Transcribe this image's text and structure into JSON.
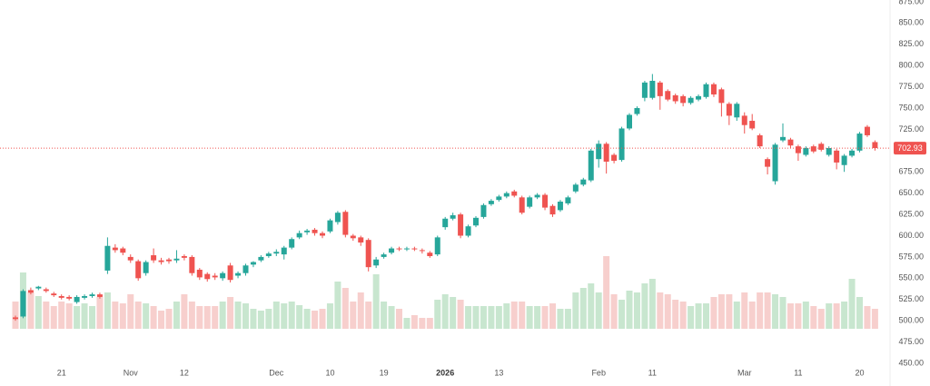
{
  "chart_data": {
    "type": "candlestick",
    "categories": [
      null,
      null,
      null,
      null,
      null,
      null,
      "21",
      null,
      null,
      null,
      null,
      null,
      null,
      null,
      null,
      "Nov",
      null,
      null,
      null,
      null,
      null,
      null,
      "12",
      null,
      null,
      null,
      null,
      null,
      null,
      null,
      null,
      null,
      null,
      null,
      "Dec",
      null,
      null,
      null,
      null,
      null,
      null,
      "10",
      null,
      null,
      null,
      null,
      null,
      null,
      "19",
      null,
      null,
      null,
      null,
      null,
      null,
      null,
      "2026",
      null,
      null,
      null,
      null,
      null,
      null,
      "13",
      null,
      null,
      null,
      null,
      null,
      null,
      null,
      null,
      null,
      null,
      null,
      null,
      "Feb",
      null,
      null,
      null,
      null,
      null,
      null,
      "11",
      null,
      null,
      null,
      null,
      null,
      null,
      null,
      null,
      null,
      null,
      null,
      "Mar",
      null,
      null,
      null,
      null,
      null,
      null,
      "11",
      null,
      null,
      null,
      null,
      null,
      null,
      null,
      "20",
      null,
      null
    ],
    "open": [
      504,
      505,
      536,
      538,
      537,
      532,
      529,
      528,
      522,
      527,
      529,
      531,
      559,
      586,
      585,
      575,
      570,
      556,
      577,
      571,
      572,
      571,
      576,
      575,
      560,
      555,
      553,
      550,
      565,
      553,
      556,
      566,
      571,
      576,
      579,
      578,
      586,
      598,
      604,
      607,
      603,
      605,
      616,
      628,
      600,
      598,
      595,
      565,
      575,
      580,
      585,
      584,
      585,
      583,
      580,
      578,
      610,
      620,
      625,
      600,
      612,
      622,
      637,
      642,
      646,
      652,
      645,
      634,
      645,
      648,
      635,
      630,
      638,
      652,
      660,
      665,
      690,
      708,
      695,
      689,
      726,
      743,
      762,
      762,
      780,
      770,
      765,
      764,
      756,
      760,
      763,
      778,
      772,
      755,
      739,
      741,
      735,
      718,
      690,
      664,
      712,
      713,
      705,
      695,
      705,
      708,
      695,
      700,
      683,
      694,
      700,
      728,
      710
    ],
    "high": [
      506,
      537,
      539,
      541,
      539,
      534,
      531,
      530,
      530,
      531,
      533,
      533,
      598,
      590,
      587,
      578,
      572,
      571,
      585,
      574,
      574,
      583,
      578,
      577,
      562,
      557,
      556,
      558,
      568,
      558,
      567,
      570,
      577,
      581,
      584,
      588,
      598,
      606,
      608,
      609,
      605,
      620,
      629,
      630,
      602,
      600,
      597,
      575,
      580,
      587,
      587,
      587,
      587,
      585,
      582,
      600,
      622,
      627,
      627,
      613,
      623,
      638,
      643,
      648,
      652,
      654,
      647,
      647,
      650,
      650,
      637,
      642,
      647,
      662,
      668,
      702,
      712,
      710,
      697,
      728,
      744,
      752,
      782,
      790,
      782,
      772,
      767,
      766,
      764,
      766,
      780,
      780,
      774,
      757,
      757,
      745,
      743,
      720,
      692,
      709,
      732,
      715,
      707,
      705,
      707,
      710,
      705,
      702,
      696,
      702,
      722,
      730,
      712
    ],
    "low": [
      500,
      503,
      531,
      536,
      533,
      528,
      525,
      524,
      520,
      525,
      527,
      526,
      555,
      580,
      577,
      568,
      547,
      553,
      568,
      566,
      567,
      568,
      571,
      553,
      548,
      546,
      548,
      547,
      545,
      550,
      553,
      563,
      569,
      574,
      576,
      572,
      584,
      596,
      601,
      600,
      597,
      603,
      613,
      598,
      594,
      588,
      558,
      562,
      573,
      578,
      582,
      582,
      582,
      579,
      574,
      576,
      607,
      618,
      597,
      598,
      610,
      620,
      635,
      640,
      644,
      645,
      625,
      632,
      643,
      630,
      622,
      628,
      636,
      650,
      658,
      663,
      680,
      673,
      685,
      687,
      724,
      741,
      758,
      760,
      748,
      758,
      755,
      752,
      754,
      758,
      761,
      763,
      740,
      730,
      735,
      720,
      724,
      703,
      672,
      660,
      710,
      703,
      688,
      693,
      697,
      699,
      693,
      678,
      675,
      692,
      698,
      716,
      700
    ],
    "close": [
      502,
      535,
      533,
      540,
      535,
      530,
      527,
      526,
      528,
      529,
      531,
      528,
      588,
      583,
      580,
      571,
      550,
      569,
      571,
      569,
      570,
      573,
      574,
      556,
      551,
      549,
      551,
      556,
      548,
      556,
      565,
      569,
      575,
      579,
      581,
      586,
      596,
      603,
      606,
      603,
      600,
      618,
      627,
      601,
      597,
      592,
      563,
      572,
      578,
      585,
      584,
      585,
      584,
      582,
      576,
      598,
      620,
      624,
      600,
      611,
      621,
      636,
      641,
      646,
      650,
      647,
      627,
      645,
      648,
      633,
      625,
      640,
      645,
      660,
      666,
      700,
      708,
      687,
      688,
      726,
      742,
      750,
      780,
      782,
      764,
      760,
      758,
      756,
      762,
      764,
      778,
      766,
      756,
      741,
      755,
      730,
      726,
      705,
      681,
      707,
      716,
      706,
      697,
      703,
      699,
      701,
      703,
      686,
      694,
      700,
      720,
      718,
      702.93
    ],
    "volume": [
      30,
      62,
      40,
      36,
      30,
      25,
      30,
      28,
      25,
      28,
      25,
      35,
      40,
      30,
      28,
      38,
      30,
      28,
      25,
      20,
      22,
      30,
      38,
      30,
      25,
      25,
      25,
      30,
      35,
      30,
      28,
      22,
      20,
      22,
      30,
      28,
      30,
      26,
      22,
      20,
      22,
      28,
      52,
      45,
      30,
      40,
      30,
      60,
      30,
      25,
      22,
      12,
      15,
      12,
      12,
      32,
      38,
      35,
      32,
      25,
      25,
      25,
      25,
      25,
      28,
      30,
      30,
      25,
      25,
      25,
      28,
      22,
      22,
      40,
      45,
      50,
      40,
      80,
      38,
      32,
      42,
      40,
      50,
      55,
      40,
      38,
      32,
      30,
      25,
      28,
      28,
      35,
      38,
      38,
      30,
      40,
      30,
      40,
      40,
      38,
      35,
      28,
      28,
      30,
      25,
      22,
      28,
      28,
      30,
      55,
      35,
      25,
      22
    ],
    "up_color": "#26a69a",
    "down_color": "#ef5350",
    "up_volume_color": "#c8e6cf",
    "down_volume_color": "#f7cfcd",
    "last_price": 702.93,
    "ylim": [
      445,
      877
    ],
    "yticks": [
      {
        "value": 450,
        "label": "450.00"
      },
      {
        "value": 475,
        "label": "475.00"
      },
      {
        "value": 500,
        "label": "500.00"
      },
      {
        "value": 525,
        "label": "525.00"
      },
      {
        "value": 550,
        "label": "550.00"
      },
      {
        "value": 575,
        "label": "575.00"
      },
      {
        "value": 600,
        "label": "600.00"
      },
      {
        "value": 625,
        "label": "625.00"
      },
      {
        "value": 650,
        "label": "650.00"
      },
      {
        "value": 675,
        "label": "675.00"
      },
      {
        "value": 700,
        "label": "700.00"
      },
      {
        "value": 725,
        "label": "725.00"
      },
      {
        "value": 750,
        "label": "750.00"
      },
      {
        "value": 775,
        "label": "775.00"
      },
      {
        "value": 800,
        "label": "800.00"
      },
      {
        "value": 825,
        "label": "825.00"
      },
      {
        "value": 850,
        "label": "850.00"
      },
      {
        "value": 875,
        "label": "875.00"
      }
    ]
  }
}
